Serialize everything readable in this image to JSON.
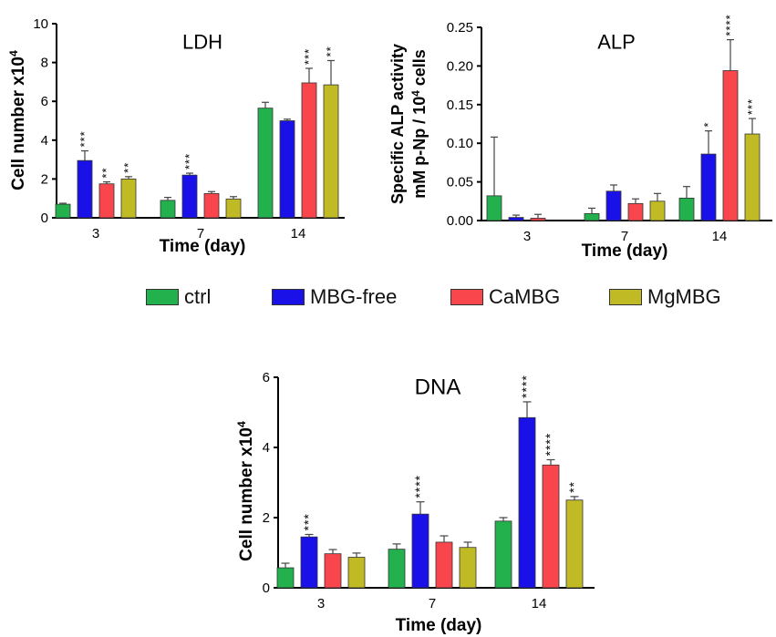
{
  "legend": [
    {
      "label": "ctrl",
      "color": "#22b14c"
    },
    {
      "label": "MBG-free",
      "color": "#1a10e8"
    },
    {
      "label": "CaMBG",
      "color": "#f8464c"
    },
    {
      "label": "MgMBG",
      "color": "#c0bb24"
    }
  ],
  "chart_data": [
    {
      "type": "bar",
      "title": "LDH",
      "xlabel": "Time (day)",
      "ylabel": "Cell number x10",
      "ylabel_sup": "4",
      "ylim": [
        0,
        10
      ],
      "yticks": [
        "0",
        "2",
        "4",
        "6",
        "8",
        "10"
      ],
      "categories": [
        "3",
        "7",
        "14"
      ],
      "series": [
        {
          "name": "ctrl",
          "values": [
            0.7,
            0.9,
            5.65
          ],
          "errors": [
            0.05,
            0.15,
            0.3
          ],
          "sig": [
            "",
            "",
            ""
          ]
        },
        {
          "name": "MBG-free",
          "values": [
            2.95,
            2.2,
            5.0
          ],
          "errors": [
            0.5,
            0.1,
            0.08
          ],
          "sig": [
            "***",
            "***",
            ""
          ]
        },
        {
          "name": "CaMBG",
          "values": [
            1.75,
            1.25,
            6.95
          ],
          "errors": [
            0.1,
            0.1,
            0.75
          ],
          "sig": [
            "**",
            "",
            "***"
          ]
        },
        {
          "name": "MgMBG",
          "values": [
            2.0,
            0.97,
            6.85
          ],
          "errors": [
            0.12,
            0.12,
            1.25
          ],
          "sig": [
            "**",
            "",
            "**"
          ]
        }
      ]
    },
    {
      "type": "bar",
      "title": "ALP",
      "xlabel": "Time (day)",
      "ylabel": "Specific ALP activity",
      "ylabel2_pre": "mM p-Np / 10",
      "ylabel2_sup": "4",
      "ylabel2_post": " cells",
      "ylim": [
        0,
        0.25
      ],
      "yticks": [
        "0.00",
        "0.05",
        "0.10",
        "0.15",
        "0.20",
        "0.25"
      ],
      "categories": [
        "3",
        "7",
        "14"
      ],
      "series": [
        {
          "name": "ctrl",
          "values": [
            0.032,
            0.009,
            0.029
          ],
          "errors": [
            0.076,
            0.007,
            0.015
          ],
          "sig": [
            "",
            "",
            ""
          ]
        },
        {
          "name": "MBG-free",
          "values": [
            0.004,
            0.038,
            0.086
          ],
          "errors": [
            0.003,
            0.008,
            0.03
          ],
          "sig": [
            "",
            "",
            "*"
          ]
        },
        {
          "name": "CaMBG",
          "values": [
            0.003,
            0.022,
            0.194
          ],
          "errors": [
            0.005,
            0.006,
            0.04
          ],
          "sig": [
            "",
            "",
            "****"
          ]
        },
        {
          "name": "MgMBG",
          "values": [
            0.0,
            0.025,
            0.112
          ],
          "errors": [
            0.0,
            0.01,
            0.02
          ],
          "sig": [
            "",
            "",
            "***"
          ]
        }
      ]
    },
    {
      "type": "bar",
      "title": "DNA",
      "xlabel": "Time (day)",
      "ylabel": "Cell number x10",
      "ylabel_sup": "4",
      "ylim": [
        0,
        6
      ],
      "yticks": [
        "0",
        "2",
        "4",
        "6"
      ],
      "categories": [
        "3",
        "7",
        "14"
      ],
      "series": [
        {
          "name": "ctrl",
          "values": [
            0.57,
            1.1,
            1.9
          ],
          "errors": [
            0.13,
            0.15,
            0.1
          ],
          "sig": [
            "",
            "",
            ""
          ]
        },
        {
          "name": "MBG-free",
          "values": [
            1.45,
            2.1,
            4.85
          ],
          "errors": [
            0.07,
            0.35,
            0.45
          ],
          "sig": [
            "***",
            "****",
            "****"
          ]
        },
        {
          "name": "CaMBG",
          "values": [
            0.97,
            1.3,
            3.5
          ],
          "errors": [
            0.12,
            0.18,
            0.15
          ],
          "sig": [
            "",
            "",
            "****"
          ]
        },
        {
          "name": "MgMBG",
          "values": [
            0.87,
            1.15,
            2.5
          ],
          "errors": [
            0.12,
            0.15,
            0.1
          ],
          "sig": [
            "",
            "",
            "**"
          ]
        }
      ]
    }
  ]
}
